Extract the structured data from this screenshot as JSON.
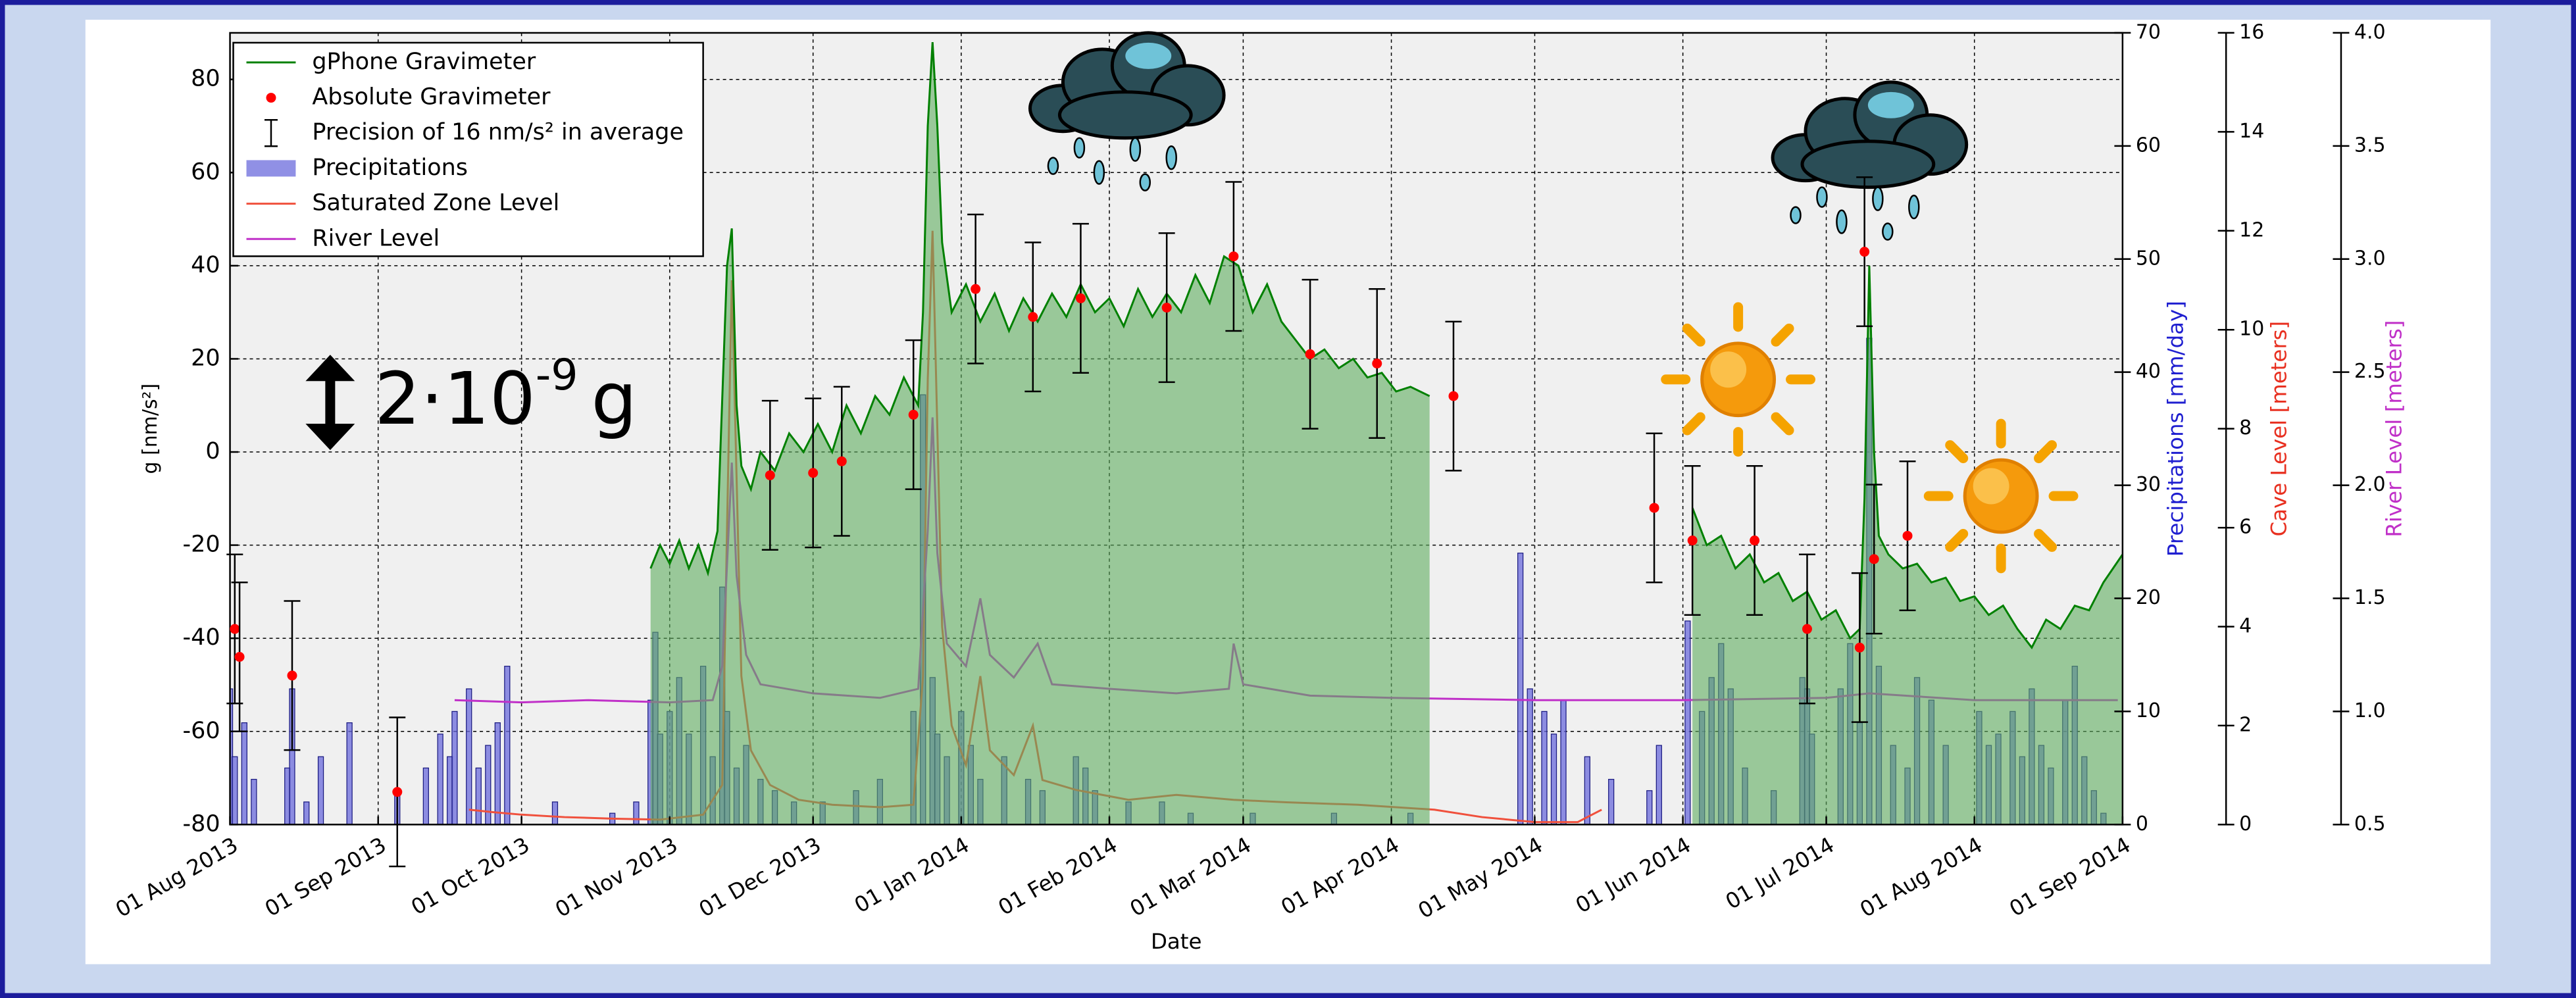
{
  "chart_data": {
    "type": "combo",
    "xlabel": "Date",
    "ylabel": "g [nm/s²]",
    "y2label": "Precipitations [mm/day]",
    "y3label": "Cave Level [meters]",
    "y4label": "River Level [meters]",
    "annotation": {
      "base": "2·10",
      "exponent": "-9",
      "unit": "g"
    },
    "grid": true,
    "legend": "upper left",
    "xlim": [
      "2013-08-01",
      "2014-09-01"
    ],
    "xticks": [
      {
        "value": "2013-08-01",
        "label": "01 Aug 2013"
      },
      {
        "value": "2013-09-01",
        "label": "01 Sep 2013"
      },
      {
        "value": "2013-10-01",
        "label": "01 Oct 2013"
      },
      {
        "value": "2013-11-01",
        "label": "01 Nov 2013"
      },
      {
        "value": "2013-12-01",
        "label": "01 Dec 2013"
      },
      {
        "value": "2014-01-01",
        "label": "01 Jan 2014"
      },
      {
        "value": "2014-02-01",
        "label": "01 Feb 2014"
      },
      {
        "value": "2014-03-01",
        "label": "01 Mar 2014"
      },
      {
        "value": "2014-04-01",
        "label": "01 Apr 2014"
      },
      {
        "value": "2014-05-01",
        "label": "01 May 2014"
      },
      {
        "value": "2014-06-01",
        "label": "01 Jun 2014"
      },
      {
        "value": "2014-07-01",
        "label": "01 Jul 2014"
      },
      {
        "value": "2014-08-01",
        "label": "01 Aug 2014"
      },
      {
        "value": "2014-09-01",
        "label": "01 Sep 2014"
      }
    ],
    "ylim": [
      -80,
      90
    ],
    "yticks": [
      -80,
      -60,
      -40,
      -20,
      0,
      20,
      40,
      60,
      80
    ],
    "y2lim": [
      0,
      70
    ],
    "y2ticks": [
      0,
      10,
      20,
      30,
      40,
      50,
      60,
      70
    ],
    "y3lim": [
      0,
      16
    ],
    "y3ticks": [
      0,
      2,
      4,
      6,
      8,
      10,
      12,
      14,
      16
    ],
    "y4lim": [
      0.5,
      4.0
    ],
    "y4ticks": [
      0.5,
      {
        "value": 1.0,
        "label": "1.0"
      },
      1.5,
      {
        "value": 2.0,
        "label": "2.0"
      },
      2.5,
      {
        "value": 3.0,
        "label": "3.0"
      },
      3.5,
      {
        "value": 4.0,
        "label": "4.0"
      }
    ],
    "series": [
      {
        "name": "gPhone Gravimeter",
        "type": "line",
        "color": "#008000",
        "fill": "#5fae5f",
        "axis": "y",
        "x": [
          "2013-10-28",
          "2013-10-30",
          "2013-11-01",
          "2013-11-03",
          "2013-11-05",
          "2013-11-07",
          "2013-11-09",
          "2013-11-11",
          "2013-11-13",
          "2013-11-14",
          "2013-11-15",
          "2013-11-16",
          "2013-11-18",
          "2013-11-20",
          "2013-11-23",
          "2013-11-26",
          "2013-11-29",
          "2013-12-02",
          "2013-12-05",
          "2013-12-08",
          "2013-12-11",
          "2013-12-14",
          "2013-12-17",
          "2013-12-20",
          "2013-12-23",
          "2013-12-24",
          "2013-12-25",
          "2013-12-26",
          "2013-12-27",
          "2013-12-28",
          "2013-12-30",
          "2014-01-02",
          "2014-01-05",
          "2014-01-08",
          "2014-01-11",
          "2014-01-14",
          "2014-01-17",
          "2014-01-20",
          "2014-01-23",
          "2014-01-26",
          "2014-01-29",
          "2014-02-01",
          "2014-02-04",
          "2014-02-07",
          "2014-02-10",
          "2014-02-13",
          "2014-02-16",
          "2014-02-19",
          "2014-02-22",
          "2014-02-25",
          "2014-02-28",
          "2014-03-03",
          "2014-03-06",
          "2014-03-09",
          "2014-03-12",
          "2014-03-15",
          "2014-03-18",
          "2014-03-21",
          "2014-03-24",
          "2014-03-27",
          "2014-03-30",
          "2014-04-02",
          "2014-04-05",
          "2014-04-09",
          "2014-05-01",
          "2014-06-03",
          "2014-06-06",
          "2014-06-09",
          "2014-06-12",
          "2014-06-15",
          "2014-06-18",
          "2014-06-21",
          "2014-06-24",
          "2014-06-27",
          "2014-06-30",
          "2014-07-03",
          "2014-07-06",
          "2014-07-08",
          "2014-07-09",
          "2014-07-10",
          "2014-07-11",
          "2014-07-12",
          "2014-07-14",
          "2014-07-17",
          "2014-07-20",
          "2014-07-23",
          "2014-07-26",
          "2014-07-29",
          "2014-08-01",
          "2014-08-04",
          "2014-08-07",
          "2014-08-10",
          "2014-08-13",
          "2014-08-16",
          "2014-08-19",
          "2014-08-22",
          "2014-08-25",
          "2014-08-28",
          "2014-09-01"
        ],
        "values": [
          -25,
          -20,
          -24,
          -19,
          -25,
          -20,
          -26,
          -17,
          40,
          48,
          10,
          -3,
          -8,
          0,
          -4,
          4,
          0,
          6,
          0,
          10,
          4,
          12,
          8,
          16,
          10,
          30,
          70,
          88,
          70,
          45,
          30,
          36,
          28,
          34,
          26,
          33,
          28,
          34,
          29,
          36,
          30,
          33,
          27,
          35,
          29,
          34,
          30,
          38,
          32,
          42,
          40,
          30,
          36,
          28,
          24,
          20,
          22,
          18,
          20,
          16,
          17,
          13,
          14,
          12,
          null,
          -12,
          -20,
          -18,
          -25,
          -22,
          -28,
          -26,
          -32,
          -30,
          -36,
          -34,
          -40,
          -38,
          -10,
          40,
          0,
          -18,
          -22,
          -25,
          -24,
          -28,
          -27,
          -32,
          -31,
          -35,
          -33,
          -38,
          -42,
          -36,
          -38,
          -33,
          -34,
          -28,
          -22
        ]
      },
      {
        "name": "Absolute Gravimeter",
        "type": "scatter",
        "color": "#ff0000",
        "axis": "y",
        "error_label": "Precision of 16 nm/s² in average",
        "x": [
          "2013-08-02",
          "2013-08-03",
          "2013-08-14",
          "2013-09-05",
          "2013-11-22",
          "2013-12-01",
          "2013-12-07",
          "2013-12-22",
          "2014-01-04",
          "2014-01-16",
          "2014-01-26",
          "2014-02-13",
          "2014-02-27",
          "2014-03-15",
          "2014-03-29",
          "2014-04-14",
          "2014-05-26",
          "2014-06-03",
          "2014-06-16",
          "2014-06-27",
          "2014-07-08",
          "2014-07-09",
          "2014-07-11",
          "2014-07-18"
        ],
        "values": [
          -38,
          -44,
          -48,
          -73,
          -5,
          -4.5,
          -2,
          8,
          35,
          29,
          33,
          31,
          42,
          21,
          19,
          12,
          -12,
          -19,
          -19,
          -38,
          -42,
          43,
          -23,
          -18
        ],
        "errors": [
          16,
          16,
          16,
          16,
          16,
          16,
          16,
          16,
          16,
          16,
          16,
          16,
          16,
          16,
          16,
          16,
          16,
          16,
          16,
          16,
          16,
          16,
          16,
          16
        ]
      },
      {
        "name": "Precipitations",
        "type": "bar",
        "color": "#6b6bdc",
        "axis": "y2",
        "x": [
          "2013-08-01",
          "2013-08-02",
          "2013-08-04",
          "2013-08-06",
          "2013-08-13",
          "2013-08-14",
          "2013-08-17",
          "2013-08-20",
          "2013-08-26",
          "2013-09-05",
          "2013-09-11",
          "2013-09-14",
          "2013-09-16",
          "2013-09-17",
          "2013-09-20",
          "2013-09-22",
          "2013-09-24",
          "2013-09-26",
          "2013-09-28",
          "2013-10-08",
          "2013-10-20",
          "2013-10-25",
          "2013-10-28",
          "2013-10-29",
          "2013-10-30",
          "2013-11-01",
          "2013-11-03",
          "2013-11-05",
          "2013-11-08",
          "2013-11-10",
          "2013-11-12",
          "2013-11-13",
          "2013-11-15",
          "2013-11-17",
          "2013-11-20",
          "2013-11-23",
          "2013-11-27",
          "2013-12-03",
          "2013-12-10",
          "2013-12-15",
          "2013-12-22",
          "2013-12-24",
          "2013-12-26",
          "2013-12-27",
          "2013-12-29",
          "2014-01-01",
          "2014-01-03",
          "2014-01-05",
          "2014-01-10",
          "2014-01-15",
          "2014-01-18",
          "2014-01-25",
          "2014-01-27",
          "2014-01-29",
          "2014-02-05",
          "2014-02-12",
          "2014-02-18",
          "2014-03-03",
          "2014-03-20",
          "2014-04-05",
          "2014-04-28",
          "2014-04-30",
          "2014-05-03",
          "2014-05-05",
          "2014-05-07",
          "2014-05-12",
          "2014-05-17",
          "2014-05-25",
          "2014-05-27",
          "2014-06-02",
          "2014-06-05",
          "2014-06-07",
          "2014-06-09",
          "2014-06-11",
          "2014-06-14",
          "2014-06-20",
          "2014-06-26",
          "2014-06-27",
          "2014-06-28",
          "2014-07-04",
          "2014-07-06",
          "2014-07-08",
          "2014-07-10",
          "2014-07-12",
          "2014-07-15",
          "2014-07-18",
          "2014-07-20",
          "2014-07-23",
          "2014-07-26",
          "2014-08-02",
          "2014-08-04",
          "2014-08-06",
          "2014-08-09",
          "2014-08-11",
          "2014-08-13",
          "2014-08-15",
          "2014-08-17",
          "2014-08-20",
          "2014-08-22",
          "2014-08-24",
          "2014-08-26",
          "2014-08-28"
        ],
        "values": [
          12,
          6,
          9,
          4,
          5,
          12,
          2,
          6,
          9,
          3,
          5,
          8,
          6,
          10,
          12,
          5,
          7,
          9,
          14,
          2,
          1,
          2,
          11,
          17,
          8,
          10,
          13,
          8,
          14,
          6,
          21,
          10,
          5,
          7,
          4,
          3,
          2,
          2,
          3,
          4,
          10,
          38,
          13,
          8,
          6,
          10,
          7,
          4,
          6,
          4,
          3,
          6,
          5,
          3,
          2,
          2,
          1,
          1,
          1,
          1,
          24,
          12,
          10,
          8,
          11,
          6,
          4,
          3,
          7,
          18,
          10,
          13,
          16,
          12,
          5,
          3,
          13,
          12,
          8,
          12,
          16,
          9,
          43,
          14,
          7,
          5,
          13,
          11,
          7,
          10,
          7,
          8,
          10,
          6,
          12,
          7,
          5,
          11,
          14,
          6,
          3,
          1
        ]
      },
      {
        "name": "Saturated Zone Level",
        "type": "line",
        "color": "#f0503c",
        "axis": "y3",
        "x": [
          "2013-09-20",
          "2013-09-25",
          "2013-10-01",
          "2013-10-10",
          "2013-10-20",
          "2013-10-30",
          "2013-11-08",
          "2013-11-12",
          "2013-11-13",
          "2013-11-14",
          "2013-11-15",
          "2013-11-16",
          "2013-11-18",
          "2013-11-22",
          "2013-11-28",
          "2013-12-05",
          "2013-12-15",
          "2013-12-22",
          "2013-12-24",
          "2013-12-25",
          "2013-12-26",
          "2013-12-27",
          "2013-12-28",
          "2013-12-30",
          "2014-01-02",
          "2014-01-05",
          "2014-01-07",
          "2014-01-12",
          "2014-01-16",
          "2014-01-18",
          "2014-01-25",
          "2014-02-05",
          "2014-02-15",
          "2014-02-27",
          "2014-03-10",
          "2014-03-25",
          "2014-04-10",
          "2014-04-20",
          "2014-05-01",
          "2014-05-10",
          "2014-05-15"
        ],
        "values": [
          0.3,
          0.25,
          0.2,
          0.15,
          0.12,
          0.1,
          0.2,
          0.8,
          6,
          11,
          7,
          3,
          1.5,
          0.8,
          0.5,
          0.4,
          0.35,
          0.4,
          3,
          9,
          12,
          8,
          4,
          2,
          1.2,
          3,
          1.5,
          1,
          2,
          0.9,
          0.7,
          0.5,
          0.6,
          0.5,
          0.45,
          0.4,
          0.3,
          0.15,
          0.05,
          0.05,
          0.3
        ]
      },
      {
        "name": "River Level",
        "type": "line",
        "color": "#c030c8",
        "axis": "y4",
        "x": [
          "2013-09-17",
          "2013-10-01",
          "2013-10-15",
          "2013-11-01",
          "2013-11-10",
          "2013-11-12",
          "2013-11-14",
          "2013-11-15",
          "2013-11-17",
          "2013-11-20",
          "2013-12-01",
          "2013-12-15",
          "2013-12-23",
          "2013-12-25",
          "2013-12-26",
          "2013-12-27",
          "2013-12-29",
          "2014-01-02",
          "2014-01-05",
          "2014-01-07",
          "2014-01-12",
          "2014-01-17",
          "2014-01-20",
          "2014-02-01",
          "2014-02-15",
          "2014-02-26",
          "2014-02-27",
          "2014-03-01",
          "2014-03-15",
          "2014-04-01",
          "2014-05-01",
          "2014-06-01",
          "2014-07-01",
          "2014-07-10",
          "2014-08-01",
          "2014-08-31"
        ],
        "values": [
          1.05,
          1.04,
          1.05,
          1.04,
          1.05,
          1.2,
          2.1,
          1.6,
          1.25,
          1.12,
          1.08,
          1.06,
          1.1,
          1.8,
          2.3,
          1.7,
          1.3,
          1.2,
          1.5,
          1.25,
          1.15,
          1.3,
          1.12,
          1.1,
          1.08,
          1.1,
          1.3,
          1.12,
          1.07,
          1.06,
          1.05,
          1.05,
          1.06,
          1.08,
          1.05,
          1.05
        ]
      }
    ]
  }
}
